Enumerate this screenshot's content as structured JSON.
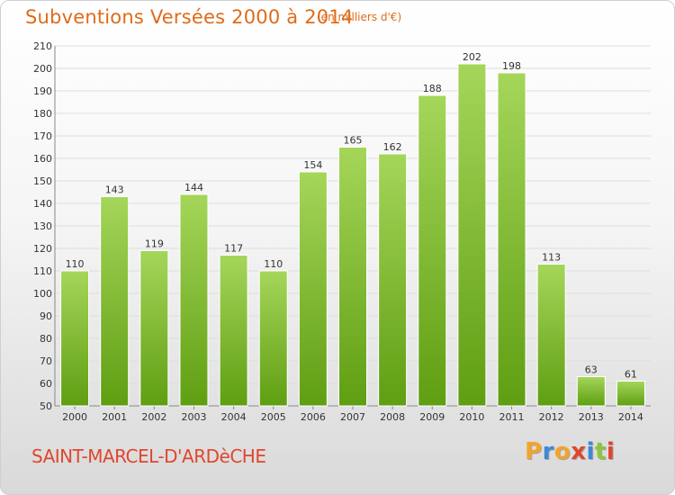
{
  "header": {
    "title": "Subventions Versées 2000 à 2014",
    "subtitle": "(en milliers d'€)"
  },
  "footer": {
    "commune": "SAINT-MARCEL-D'ARDèCHE",
    "logo_text": "Proxiti"
  },
  "colors": {
    "title": "#e06b1a",
    "commune": "#e0462e",
    "bar_top": "#a5d65a",
    "bar_bottom": "#5f9e12",
    "logo_letters": [
      "#f2a42b",
      "#3f88d4",
      "#f2a42b",
      "#e0462e",
      "#3f88d4",
      "#8cc63f",
      "#e0462e"
    ]
  },
  "chart_data": {
    "type": "bar",
    "categories": [
      "2000",
      "2001",
      "2002",
      "2003",
      "2004",
      "2005",
      "2006",
      "2007",
      "2008",
      "2009",
      "2010",
      "2011",
      "2012",
      "2013",
      "2014"
    ],
    "values": [
      110,
      143,
      119,
      144,
      117,
      110,
      154,
      165,
      162,
      188,
      202,
      198,
      113,
      63,
      61
    ],
    "title": "Subventions Versées 2000 à 2014",
    "subtitle": "(en milliers d'€)",
    "ylim": [
      50,
      210
    ],
    "yticks": [
      50,
      60,
      70,
      80,
      90,
      100,
      110,
      120,
      130,
      140,
      150,
      160,
      170,
      180,
      190,
      200,
      210
    ],
    "grid": true,
    "data_labels": true
  }
}
